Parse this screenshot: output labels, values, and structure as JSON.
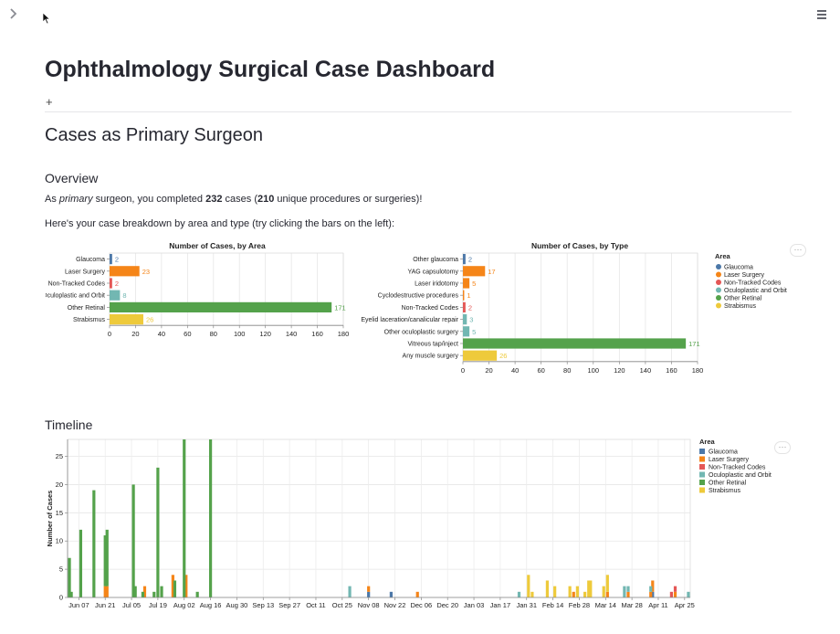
{
  "page": {
    "title": "Ophthalmology Surgical Case Dashboard",
    "add_label": "+",
    "section_title": "Cases as Primary Surgeon",
    "overview_heading": "Overview",
    "overview_text": {
      "prefix": "As ",
      "role": "primary",
      "mid1": " surgeon, you completed ",
      "cases": "232",
      "mid2": " cases (",
      "unique": "210",
      "suffix": " unique procedures or surgeries)!"
    },
    "breakdown_text": "Here's your case breakdown by area and type (try clicking the bars on the left):",
    "timeline_heading": "Timeline",
    "menu_dots": "···"
  },
  "icons": {
    "sidebar_toggle": "chevron-right-icon",
    "main_menu": "hamburger-menu-icon",
    "cursor": "mouse-pointer-icon"
  },
  "colors": {
    "Glaucoma": "#4c78a8",
    "Laser Surgery": "#f58518",
    "Non-Tracked Codes": "#e45756",
    "Oculoplastic and Orbit": "#72b7b2",
    "Other Retinal": "#54a24b",
    "Strabismus": "#eeca3b"
  },
  "legend": {
    "title": "Area",
    "items": [
      "Glaucoma",
      "Laser Surgery",
      "Non-Tracked Codes",
      "Oculoplastic and Orbit",
      "Other Retinal",
      "Strabismus"
    ]
  },
  "chart_data": [
    {
      "type": "bar",
      "orientation": "horizontal",
      "title": "Number of Cases, by Area",
      "categories": [
        "Glaucoma",
        "Laser Surgery",
        "Non-Tracked Codes",
        "Oculoplastic and Orbit",
        "Other Retinal",
        "Strabismus"
      ],
      "values": [
        2,
        23,
        2,
        8,
        171,
        26
      ],
      "areas": [
        "Glaucoma",
        "Laser Surgery",
        "Non-Tracked Codes",
        "Oculoplastic and Orbit",
        "Other Retinal",
        "Strabismus"
      ],
      "xlim": [
        0,
        180
      ],
      "xticks": [
        0,
        20,
        40,
        60,
        80,
        100,
        120,
        140,
        160,
        180
      ],
      "grid": true
    },
    {
      "type": "bar",
      "orientation": "horizontal",
      "title": "Number of Cases, by Type",
      "categories": [
        "Other glaucoma",
        "YAG capsulotomy",
        "Laser iridotomy",
        "Cyclodestructive procedures",
        "Non-Tracked Codes",
        "Eyelid laceration/canalicular repair",
        "Other oculoplastic surgery",
        "Vitreous tap/inject",
        "Any muscle surgery"
      ],
      "values": [
        2,
        17,
        5,
        1,
        2,
        3,
        5,
        171,
        26
      ],
      "areas": [
        "Glaucoma",
        "Laser Surgery",
        "Laser Surgery",
        "Laser Surgery",
        "Non-Tracked Codes",
        "Oculoplastic and Orbit",
        "Oculoplastic and Orbit",
        "Other Retinal",
        "Strabismus"
      ],
      "xlim": [
        0,
        180
      ],
      "xticks": [
        0,
        20,
        40,
        60,
        80,
        100,
        120,
        140,
        160,
        180
      ],
      "grid": true,
      "legend": "right"
    },
    {
      "type": "bar",
      "stacked": true,
      "title": "",
      "ylabel": "Number of Cases",
      "ylim": [
        0,
        28
      ],
      "yticks": [
        0,
        5,
        10,
        15,
        20,
        25
      ],
      "x_range": [
        "2021-06-01",
        "2022-04-28"
      ],
      "xticks": [
        {
          "date": "2021-06-07",
          "label": "Jun 07"
        },
        {
          "date": "2021-06-21",
          "label": "Jun 21"
        },
        {
          "date": "2021-07-05",
          "label": "Jul 05"
        },
        {
          "date": "2021-07-19",
          "label": "Jul 19"
        },
        {
          "date": "2021-08-02",
          "label": "Aug 02"
        },
        {
          "date": "2021-08-16",
          "label": "Aug 16"
        },
        {
          "date": "2021-08-30",
          "label": "Aug 30"
        },
        {
          "date": "2021-09-13",
          "label": "Sep 13"
        },
        {
          "date": "2021-09-27",
          "label": "Sep 27"
        },
        {
          "date": "2021-10-11",
          "label": "Oct 11"
        },
        {
          "date": "2021-10-25",
          "label": "Oct 25"
        },
        {
          "date": "2021-11-08",
          "label": "Nov 08"
        },
        {
          "date": "2021-11-22",
          "label": "Nov 22"
        },
        {
          "date": "2021-12-06",
          "label": "Dec 06"
        },
        {
          "date": "2021-12-20",
          "label": "Dec 20"
        },
        {
          "date": "2022-01-03",
          "label": "Jan 03"
        },
        {
          "date": "2022-01-17",
          "label": "Jan 17"
        },
        {
          "date": "2022-01-31",
          "label": "Jan 31"
        },
        {
          "date": "2022-02-14",
          "label": "Feb 14"
        },
        {
          "date": "2022-02-28",
          "label": "Feb 28"
        },
        {
          "date": "2022-03-14",
          "label": "Mar 14"
        },
        {
          "date": "2022-03-28",
          "label": "Mar 28"
        },
        {
          "date": "2022-04-11",
          "label": "Apr 11"
        },
        {
          "date": "2022-04-25",
          "label": "Apr 25"
        }
      ],
      "legend": "right",
      "bars": [
        {
          "date": "2021-06-02",
          "area": "Other Retinal",
          "value": 7
        },
        {
          "date": "2021-06-03",
          "area": "Other Retinal",
          "value": 1
        },
        {
          "date": "2021-06-08",
          "area": "Other Retinal",
          "value": 12
        },
        {
          "date": "2021-06-15",
          "area": "Other Retinal",
          "value": 19
        },
        {
          "date": "2021-06-21",
          "area": "Laser Surgery",
          "value": 2
        },
        {
          "date": "2021-06-21",
          "area": "Other Retinal",
          "value": 9
        },
        {
          "date": "2021-06-22",
          "area": "Laser Surgery",
          "value": 2
        },
        {
          "date": "2021-06-22",
          "area": "Other Retinal",
          "value": 10
        },
        {
          "date": "2021-07-06",
          "area": "Other Retinal",
          "value": 20
        },
        {
          "date": "2021-07-07",
          "area": "Other Retinal",
          "value": 2
        },
        {
          "date": "2021-07-11",
          "area": "Other Retinal",
          "value": 1
        },
        {
          "date": "2021-07-12",
          "area": "Laser Surgery",
          "value": 2
        },
        {
          "date": "2021-07-17",
          "area": "Other Retinal",
          "value": 1
        },
        {
          "date": "2021-07-19",
          "area": "Other Retinal",
          "value": 23
        },
        {
          "date": "2021-07-21",
          "area": "Other Retinal",
          "value": 2
        },
        {
          "date": "2021-07-27",
          "area": "Laser Surgery",
          "value": 4
        },
        {
          "date": "2021-07-28",
          "area": "Other Retinal",
          "value": 3
        },
        {
          "date": "2021-08-02",
          "area": "Other Retinal",
          "value": 28
        },
        {
          "date": "2021-08-03",
          "area": "Laser Surgery",
          "value": 4
        },
        {
          "date": "2021-08-09",
          "area": "Other Retinal",
          "value": 1
        },
        {
          "date": "2021-08-16",
          "area": "Other Retinal",
          "value": 28
        },
        {
          "date": "2021-10-29",
          "area": "Oculoplastic and Orbit",
          "value": 2
        },
        {
          "date": "2021-11-08",
          "area": "Glaucoma",
          "value": 1
        },
        {
          "date": "2021-11-08",
          "area": "Laser Surgery",
          "value": 1
        },
        {
          "date": "2021-11-20",
          "area": "Glaucoma",
          "value": 1
        },
        {
          "date": "2021-12-04",
          "area": "Laser Surgery",
          "value": 1
        },
        {
          "date": "2022-01-27",
          "area": "Oculoplastic and Orbit",
          "value": 1
        },
        {
          "date": "2022-02-01",
          "area": "Strabismus",
          "value": 4
        },
        {
          "date": "2022-02-03",
          "area": "Strabismus",
          "value": 1
        },
        {
          "date": "2022-02-11",
          "area": "Strabismus",
          "value": 3
        },
        {
          "date": "2022-02-15",
          "area": "Strabismus",
          "value": 2
        },
        {
          "date": "2022-02-23",
          "area": "Strabismus",
          "value": 2
        },
        {
          "date": "2022-02-25",
          "area": "Laser Surgery",
          "value": 1
        },
        {
          "date": "2022-02-27",
          "area": "Strabismus",
          "value": 2
        },
        {
          "date": "2022-03-03",
          "area": "Strabismus",
          "value": 1
        },
        {
          "date": "2022-03-05",
          "area": "Strabismus",
          "value": 3
        },
        {
          "date": "2022-03-06",
          "area": "Strabismus",
          "value": 3
        },
        {
          "date": "2022-03-13",
          "area": "Strabismus",
          "value": 2
        },
        {
          "date": "2022-03-15",
          "area": "Laser Surgery",
          "value": 1
        },
        {
          "date": "2022-03-15",
          "area": "Strabismus",
          "value": 3
        },
        {
          "date": "2022-03-24",
          "area": "Oculoplastic and Orbit",
          "value": 2
        },
        {
          "date": "2022-03-26",
          "area": "Oculoplastic and Orbit",
          "value": 1
        },
        {
          "date": "2022-03-26",
          "area": "Laser Surgery",
          "value": 1
        },
        {
          "date": "2022-04-07",
          "area": "Laser Surgery",
          "value": 1
        },
        {
          "date": "2022-04-07",
          "area": "Oculoplastic and Orbit",
          "value": 1
        },
        {
          "date": "2022-04-08",
          "area": "Glaucoma",
          "value": 1
        },
        {
          "date": "2022-04-08",
          "area": "Laser Surgery",
          "value": 2
        },
        {
          "date": "2022-04-18",
          "area": "Non-Tracked Codes",
          "value": 1
        },
        {
          "date": "2022-04-20",
          "area": "Laser Surgery",
          "value": 1
        },
        {
          "date": "2022-04-20",
          "area": "Non-Tracked Codes",
          "value": 1
        },
        {
          "date": "2022-04-27",
          "area": "Oculoplastic and Orbit",
          "value": 1
        }
      ]
    }
  ]
}
